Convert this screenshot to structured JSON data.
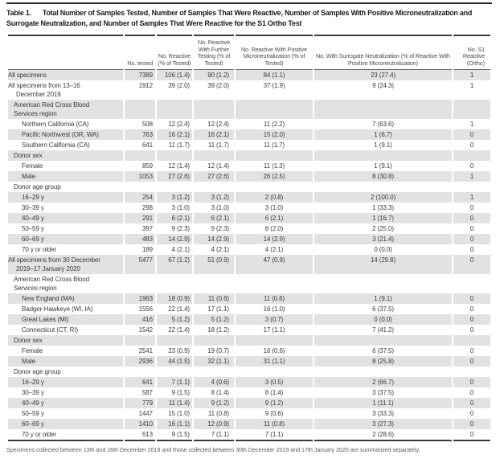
{
  "page": {
    "background": "#ffffff",
    "text_color": "#3a3a3a",
    "stripe_color": "#e2e2e2",
    "rule_color": "#3c3c3c"
  },
  "caption": {
    "label": "Table 1.",
    "text": "Total Number of Samples Tested, Number of Samples That Were Reactive, Number of Samples With Positive Microneutralization and Surrogate Neutralization, and Number of Samples That Were Reactive for the S1 Ortho Test"
  },
  "table": {
    "columns": [
      "",
      "No. tested",
      "No. Reactive (% of Tested)",
      "No. Reactive With Further Testing (% of Tested)",
      "No. Reactive With Positive Microneutralization (% of Tested)",
      "No. With Surrogate Neutralization (% of Reactive With Positive Microneutralization)",
      "No. S1 Reactive (Ortho)"
    ],
    "rows": [
      {
        "label": "All specimens",
        "indent": 0,
        "section": false,
        "values": [
          "7389",
          "106 (1.4)",
          "90 (1.2)",
          "84 (1.1)",
          "23 (27.4)",
          "1"
        ]
      },
      {
        "label": "All specimens from 13–16 December 2019",
        "indent": 0,
        "section": false,
        "values": [
          "1912",
          "39 (2.0)",
          "39 (2.0)",
          "37 (1.9)",
          "9 (24.3)",
          "1"
        ]
      },
      {
        "label": "American Red Cross Blood Services region",
        "indent": 1,
        "section": true,
        "values": [
          "",
          "",
          "",
          "",
          "",
          ""
        ]
      },
      {
        "label": "Northern California (CA)",
        "indent": 2,
        "section": false,
        "values": [
          "508",
          "12 (2.4)",
          "12 (2.4)",
          "11 (2.2)",
          "7 (63.6)",
          "1"
        ]
      },
      {
        "label": "Pacific Northwest (OR, WA)",
        "indent": 2,
        "section": false,
        "values": [
          "763",
          "16 (2.1)",
          "16 (2.1)",
          "15 (2.0)",
          "1 (6.7)",
          "0"
        ]
      },
      {
        "label": "Southern California (CA)",
        "indent": 2,
        "section": false,
        "values": [
          "641",
          "11 (1.7)",
          "11 (1.7)",
          "11 (1.7)",
          "1 (9.1)",
          "0"
        ]
      },
      {
        "label": "Donor sex",
        "indent": 1,
        "section": true,
        "values": [
          "",
          "",
          "",
          "",
          "",
          ""
        ]
      },
      {
        "label": "Female",
        "indent": 2,
        "section": false,
        "values": [
          "859",
          "12 (1.4)",
          "12 (1.4)",
          "11 (1.3)",
          "1 (9.1)",
          "0"
        ]
      },
      {
        "label": "Male",
        "indent": 2,
        "section": false,
        "values": [
          "1053",
          "27 (2.6)",
          "27 (2.6)",
          "26 (2.5)",
          "8 (30.8)",
          "1"
        ]
      },
      {
        "label": "Donor age group",
        "indent": 1,
        "section": true,
        "values": [
          "",
          "",
          "",
          "",
          "",
          ""
        ]
      },
      {
        "label": "16–29 y",
        "indent": 2,
        "section": false,
        "values": [
          "254",
          "3 (1.2)",
          "3 (1.2)",
          "2 (0.8)",
          "2 (100.0)",
          "1"
        ]
      },
      {
        "label": "30–39 y",
        "indent": 2,
        "section": false,
        "values": [
          "298",
          "3 (1.0)",
          "3 (1.0)",
          "3 (1.0)",
          "1 (33.3)",
          "0"
        ]
      },
      {
        "label": "40–49 y",
        "indent": 2,
        "section": false,
        "values": [
          "291",
          "6 (2.1)",
          "6 (2.1)",
          "6 (2.1)",
          "1 (16.7)",
          "0"
        ]
      },
      {
        "label": "50–59 y",
        "indent": 2,
        "section": false,
        "values": [
          "397",
          "9 (2.3)",
          "9 (2.3)",
          "8 (2.0)",
          "2 (25.0)",
          "0"
        ]
      },
      {
        "label": "60–69 y",
        "indent": 2,
        "section": false,
        "values": [
          "483",
          "14 (2.9)",
          "14 (2.9)",
          "14 (2.9)",
          "3 (21.4)",
          "0"
        ]
      },
      {
        "label": "70 y or older",
        "indent": 2,
        "section": false,
        "values": [
          "189",
          "4 (2.1)",
          "4 (2.1)",
          "4 (2.1)",
          "0 (0.0)",
          "0"
        ]
      },
      {
        "label": "All specimens from 30 December 2019–17 January 2020",
        "indent": 0,
        "section": false,
        "values": [
          "5477",
          "67 (1.2)",
          "51 (0.9)",
          "47 (0.9)",
          "14 (29.8)",
          "0"
        ]
      },
      {
        "label": "American Red Cross Blood Services region",
        "indent": 1,
        "section": true,
        "values": [
          "",
          "",
          "",
          "",
          "",
          ""
        ]
      },
      {
        "label": "New England (MA)",
        "indent": 2,
        "section": false,
        "values": [
          "1963",
          "18 (0.9)",
          "11 (0.6)",
          "11 (0.6)",
          "1 (9.1)",
          "0"
        ]
      },
      {
        "label": "Badger-Hawkeye (WI, IA)",
        "indent": 2,
        "section": false,
        "values": [
          "1556",
          "22 (1.4)",
          "17 (1.1)",
          "16 (1.0)",
          "6 (37.5)",
          "0"
        ]
      },
      {
        "label": "Great Lakes (MI)",
        "indent": 2,
        "section": false,
        "values": [
          "416",
          "5 (1.2)",
          "5 (1.2)",
          "3 (0.7)",
          "0 (0.0)",
          "0"
        ]
      },
      {
        "label": "Connecticut (CT, RI)",
        "indent": 2,
        "section": false,
        "values": [
          "1542",
          "22 (1.4)",
          "18 (1.2)",
          "17 (1.1)",
          "7 (41.2)",
          "0"
        ]
      },
      {
        "label": "Donor sex",
        "indent": 1,
        "section": true,
        "values": [
          "",
          "",
          "",
          "",
          "",
          ""
        ]
      },
      {
        "label": "Female",
        "indent": 2,
        "section": false,
        "values": [
          "2541",
          "23 (0.9)",
          "19 (0.7)",
          "16 (0.6)",
          "6 (37.5)",
          "0"
        ]
      },
      {
        "label": "Male",
        "indent": 2,
        "section": false,
        "values": [
          "2936",
          "44 (1.5)",
          "32 (1.1)",
          "31 (1.1)",
          "8 (25.8)",
          "0"
        ]
      },
      {
        "label": "Donor age group",
        "indent": 1,
        "section": true,
        "values": [
          "",
          "",
          "",
          "",
          "",
          ""
        ]
      },
      {
        "label": "16–29 y",
        "indent": 2,
        "section": false,
        "values": [
          "641",
          "7 (1.1)",
          "4 (0.6)",
          "3 (0.5)",
          "2 (66.7)",
          "0"
        ]
      },
      {
        "label": "30–39 y",
        "indent": 2,
        "section": false,
        "values": [
          "587",
          "9 (1.5)",
          "8 (1.4)",
          "8 (1.4)",
          "3 (37.5)",
          "0"
        ]
      },
      {
        "label": "40–49 y",
        "indent": 2,
        "section": false,
        "values": [
          "779",
          "11 (1.4)",
          "9 (1.2)",
          "9 (1.2)",
          "1 (11.1)",
          "0"
        ]
      },
      {
        "label": "50–59 y",
        "indent": 2,
        "section": false,
        "values": [
          "1447",
          "15 (1.0)",
          "11 (0.8)",
          "9 (0.6)",
          "3 (33.3)",
          "0"
        ]
      },
      {
        "label": "60–69 y",
        "indent": 2,
        "section": false,
        "values": [
          "1410",
          "16 (1.1)",
          "12 (0.9)",
          "11 (0.8)",
          "3 (27.3)",
          "0"
        ]
      },
      {
        "label": "70 y or older",
        "indent": 2,
        "section": false,
        "values": [
          "613",
          "9 (1.5)",
          "7 (1.1)",
          "7 (1.1)",
          "2 (28.6)",
          "0"
        ]
      }
    ]
  },
  "footnote": "Specimens collected between 13th and 16th December 2019 and those collected between 30th December 2019 and 17th January 2020 are summarized separately."
}
